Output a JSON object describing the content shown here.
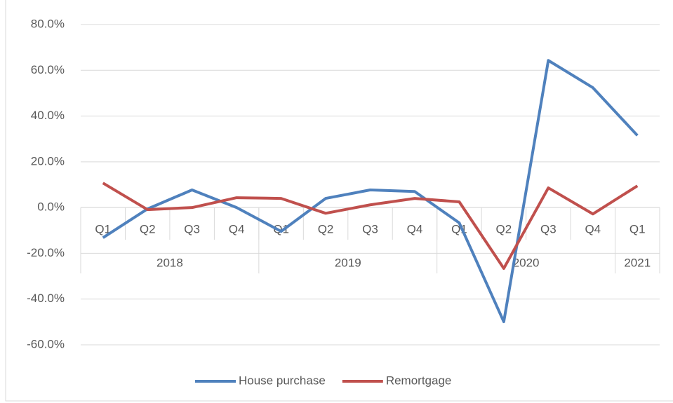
{
  "chart_data": {
    "type": "line",
    "categories": [
      "Q1",
      "Q2",
      "Q3",
      "Q4",
      "Q1",
      "Q2",
      "Q3",
      "Q4",
      "Q1",
      "Q2",
      "Q3",
      "Q4",
      "Q1"
    ],
    "years": [
      "2018",
      "2019",
      "2020",
      "2021"
    ],
    "series": [
      {
        "name": "House purchase",
        "color": "#4f81bd",
        "values": [
          -13.2,
          -0.6,
          7.7,
          0,
          -10.4,
          4,
          7.7,
          7,
          -6.7,
          -49.9,
          64.3,
          52.4,
          31.5
        ]
      },
      {
        "name": "Remortgage",
        "color": "#c0504d",
        "values": [
          10.7,
          -0.9,
          0,
          4.3,
          4,
          -2.5,
          1.2,
          4,
          2.5,
          -26.6,
          8.6,
          -2.8,
          9.5
        ]
      }
    ],
    "ylim": [
      -60,
      80
    ],
    "yticks": [
      {
        "value": -60,
        "label": "-60.0%"
      },
      {
        "value": -40,
        "label": "-40.0%"
      },
      {
        "value": -20,
        "label": "-20.0%"
      },
      {
        "value": 0,
        "label": "0.0%"
      },
      {
        "value": 20,
        "label": "20.0%"
      },
      {
        "value": 40,
        "label": "40.0%"
      },
      {
        "value": 60,
        "label": "60.0%"
      },
      {
        "value": 80,
        "label": "80.0%"
      }
    ],
    "grid": true,
    "legend": "bottom"
  }
}
